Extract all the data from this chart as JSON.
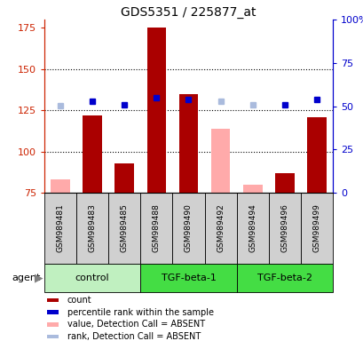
{
  "title": "GDS5351 / 225877_at",
  "samples": [
    "GSM989481",
    "GSM989483",
    "GSM989485",
    "GSM989488",
    "GSM989490",
    "GSM989492",
    "GSM989494",
    "GSM989496",
    "GSM989499"
  ],
  "counts": [
    83,
    122,
    93,
    175,
    135,
    114,
    80,
    87,
    121
  ],
  "percentile_ranks": [
    50,
    53,
    51,
    55,
    54,
    53,
    51,
    51,
    54
  ],
  "absent_detection": [
    true,
    false,
    false,
    false,
    false,
    true,
    true,
    false,
    false
  ],
  "group_defs": [
    {
      "label": "control",
      "start": 0,
      "end": 2,
      "color": "#c0f0c0"
    },
    {
      "label": "TGF-beta-1",
      "start": 3,
      "end": 5,
      "color": "#44dd44"
    },
    {
      "label": "TGF-beta-2",
      "start": 6,
      "end": 8,
      "color": "#44dd44"
    }
  ],
  "ylim_left": [
    75,
    180
  ],
  "ylim_right": [
    0,
    100
  ],
  "yticks_left": [
    75,
    100,
    125,
    150,
    175
  ],
  "yticks_right": [
    0,
    25,
    50,
    75,
    100
  ],
  "ytick_labels_right": [
    "0",
    "25",
    "50",
    "75",
    "100%"
  ],
  "bar_color_present": "#aa0000",
  "bar_color_absent": "#ffaaaa",
  "dot_color_present": "#0000cc",
  "dot_color_absent": "#aabbdd",
  "sample_box_color": "#d0d0d0",
  "left_axis_color": "#cc2200",
  "right_axis_color": "#0000cc",
  "agent_label": "agent",
  "legend_items": [
    {
      "color": "#aa0000",
      "label": "count"
    },
    {
      "color": "#0000cc",
      "label": "percentile rank within the sample"
    },
    {
      "color": "#ffaaaa",
      "label": "value, Detection Call = ABSENT"
    },
    {
      "color": "#aabbdd",
      "label": "rank, Detection Call = ABSENT"
    }
  ]
}
